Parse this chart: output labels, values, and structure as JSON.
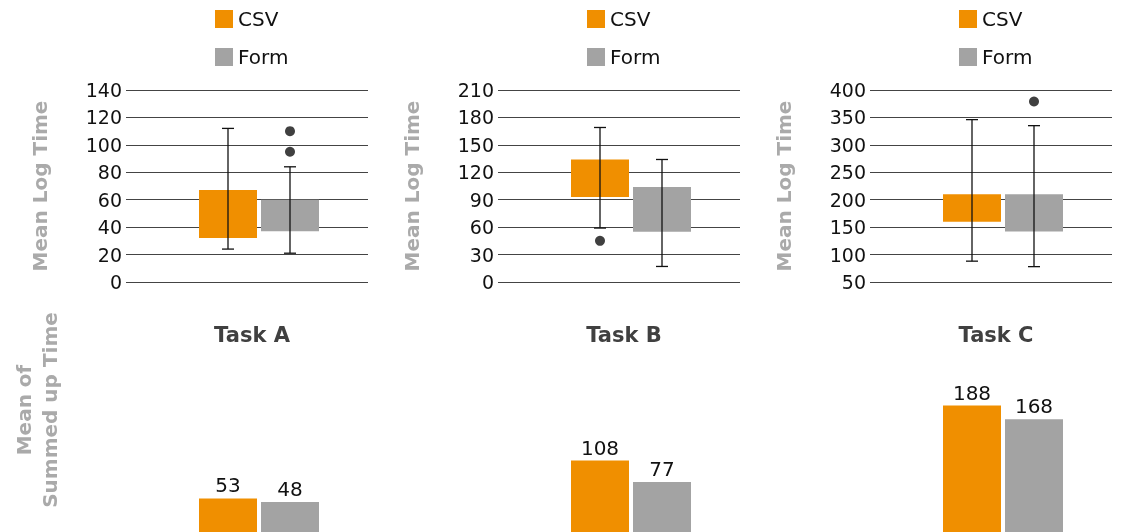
{
  "chart_data": [
    {
      "type": "box",
      "ylabel": "Mean Log Time",
      "categories": [
        null
      ],
      "ylim": [
        0,
        140
      ],
      "yticks": [
        0,
        20,
        40,
        60,
        80,
        100,
        120,
        140
      ],
      "grid": "y",
      "legend": "top",
      "series": [
        {
          "name": "CSV",
          "color": "#f08f00",
          "boxes": [
            {
              "low": 24,
              "q1": 32,
              "q3": 67,
              "high": 112
            }
          ]
        },
        {
          "name": "Form",
          "color": "#a3a3a3",
          "boxes": [
            {
              "low": 21,
              "q1": 37,
              "q3": 60,
              "high": 84,
              "outliers": [
                95,
                110
              ]
            }
          ]
        }
      ]
    },
    {
      "type": "box",
      "ylabel": "Mean Log Time",
      "categories": [
        null
      ],
      "ylim": [
        0,
        210
      ],
      "yticks": [
        0,
        30,
        60,
        90,
        120,
        150,
        180,
        210
      ],
      "grid": "y",
      "legend": "top",
      "series": [
        {
          "name": "CSV",
          "color": "#f08f00",
          "boxes": [
            {
              "low": 59,
              "q1": 93,
              "q3": 134,
              "high": 169,
              "outliers": [
                45
              ]
            }
          ]
        },
        {
          "name": "Form",
          "color": "#a3a3a3",
          "boxes": [
            {
              "low": 17,
              "q1": 55,
              "q3": 104,
              "high": 134
            }
          ]
        }
      ]
    },
    {
      "type": "box",
      "ylabel": "Mean Log Time",
      "categories": [
        null
      ],
      "ylim": [
        50,
        400
      ],
      "yticks": [
        50,
        100,
        150,
        200,
        250,
        300,
        350,
        400
      ],
      "grid": "y",
      "legend": "top",
      "series": [
        {
          "name": "CSV",
          "color": "#f08f00",
          "boxes": [
            {
              "low": 88,
              "q1": 160,
              "q3": 210,
              "high": 346
            }
          ]
        },
        {
          "name": "Form",
          "color": "#a3a3a3",
          "boxes": [
            {
              "low": 78,
              "q1": 142,
              "q3": 210,
              "high": 335,
              "outliers": [
                379
              ]
            }
          ]
        }
      ]
    },
    {
      "type": "bar",
      "title": "Task A",
      "ylabel": "Mean of\nSummed up Time",
      "categories": [
        null
      ],
      "data_labels": true,
      "series": [
        {
          "color": "#f08f00",
          "values": [
            53
          ]
        },
        {
          "color": "#a3a3a3",
          "values": [
            48
          ]
        }
      ]
    },
    {
      "type": "bar",
      "title": "Task B",
      "categories": [
        null
      ],
      "data_labels": true,
      "series": [
        {
          "color": "#f08f00",
          "values": [
            108
          ]
        },
        {
          "color": "#a3a3a3",
          "values": [
            77
          ]
        }
      ]
    },
    {
      "type": "bar",
      "title": "Task C",
      "categories": [
        null
      ],
      "data_labels": true,
      "series": [
        {
          "color": "#f08f00",
          "values": [
            188
          ]
        },
        {
          "color": "#a3a3a3",
          "values": [
            168
          ]
        }
      ]
    }
  ]
}
